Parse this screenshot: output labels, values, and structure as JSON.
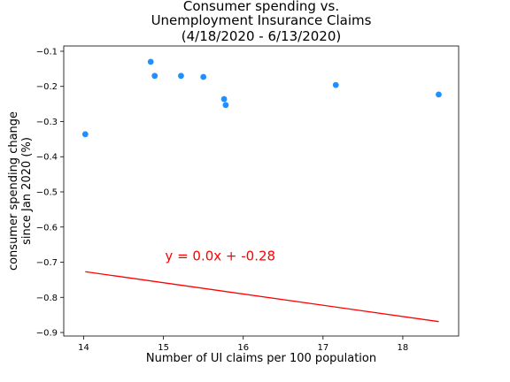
{
  "chart_data": {
    "type": "scatter",
    "title_lines": [
      "Consumer spending vs.",
      "Unemployment Insurance Claims",
      "(4/18/2020 - 6/13/2020)"
    ],
    "xlabel": "Number of UI claims per 100 population",
    "ylabel_lines": [
      "consumer spending change",
      "since Jan 2020 (%)"
    ],
    "xlim": [
      13.75,
      18.7
    ],
    "ylim": [
      -0.91,
      -0.085
    ],
    "x_ticks": [
      14,
      15,
      16,
      17,
      18
    ],
    "y_ticks": [
      -0.1,
      -0.2,
      -0.3,
      -0.4,
      -0.5,
      -0.6,
      -0.7,
      -0.8,
      -0.9
    ],
    "grid": false,
    "point_color": "#1e90ff",
    "points": [
      {
        "x": 14.02,
        "y": -0.336
      },
      {
        "x": 14.84,
        "y": -0.13
      },
      {
        "x": 14.89,
        "y": -0.17
      },
      {
        "x": 15.22,
        "y": -0.17
      },
      {
        "x": 15.5,
        "y": -0.173
      },
      {
        "x": 15.76,
        "y": -0.236
      },
      {
        "x": 15.78,
        "y": -0.253
      },
      {
        "x": 17.16,
        "y": -0.196
      },
      {
        "x": 18.45,
        "y": -0.223
      }
    ],
    "regression": {
      "color": "#ff0000",
      "x": [
        14.02,
        18.45
      ],
      "y": [
        -0.727,
        -0.869
      ],
      "label": "y = 0.0x + -0.28",
      "label_x": 15.02,
      "label_y": -0.695
    }
  }
}
